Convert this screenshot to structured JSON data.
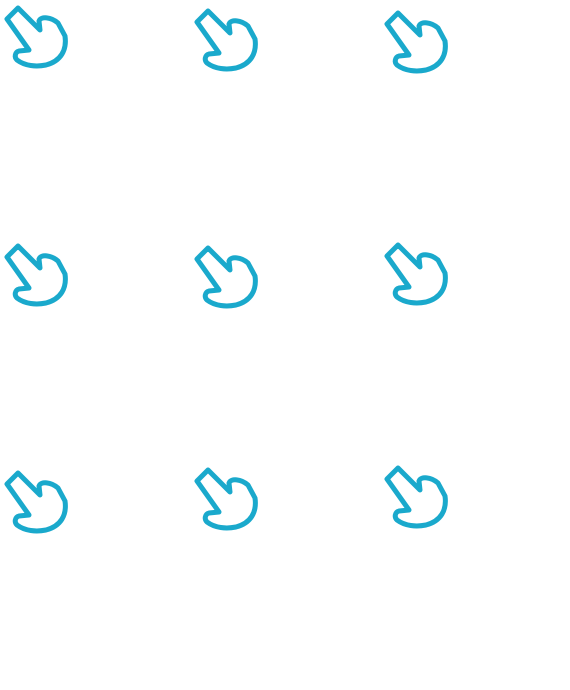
{
  "accent_color": "#1aa9cc",
  "icon": "curved-arrow-down-right-icon",
  "grid": {
    "rows": 3,
    "columns": 3
  }
}
